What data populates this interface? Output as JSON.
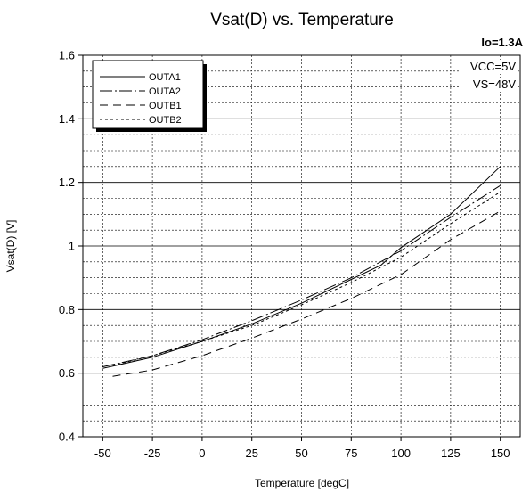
{
  "chart_data": {
    "type": "line",
    "title": "Vsat(D) vs. Temperature",
    "corner_label": "Io=1.3A",
    "conditions": [
      "VCC=5V",
      "VS=48V"
    ],
    "xlabel": "Temperature [degC]",
    "ylabel": "Vsat(D) [V]",
    "xlim": [
      -60,
      160
    ],
    "ylim": [
      0.4,
      1.6
    ],
    "xticks": [
      -50,
      -25,
      0,
      25,
      50,
      75,
      100,
      125,
      150
    ],
    "yticks": [
      0.4,
      0.6,
      0.8,
      1,
      1.2,
      1.4,
      1.6
    ],
    "ytick_labels": [
      "0.4",
      "0.6",
      "0.8",
      "1",
      "1.2",
      "1.4",
      "1.6"
    ],
    "grid": true,
    "legend_position": "top-left",
    "series": [
      {
        "name": "OUTA1",
        "dash": "solid",
        "x": [
          -50,
          -25,
          0,
          25,
          50,
          75,
          90,
          100,
          125,
          150
        ],
        "y": [
          0.615,
          0.65,
          0.7,
          0.755,
          0.82,
          0.895,
          0.94,
          0.995,
          1.1,
          1.25
        ]
      },
      {
        "name": "OUTA2",
        "dash": "longdash",
        "x": [
          -50,
          -25,
          0,
          25,
          50,
          75,
          100,
          125,
          150
        ],
        "y": [
          0.62,
          0.655,
          0.705,
          0.765,
          0.83,
          0.9,
          0.985,
          1.09,
          1.19
        ]
      },
      {
        "name": "OUTB1",
        "dash": "dash",
        "x": [
          -45,
          -25,
          0,
          25,
          50,
          75,
          100,
          125,
          150
        ],
        "y": [
          0.59,
          0.61,
          0.655,
          0.71,
          0.77,
          0.835,
          0.91,
          1.02,
          1.11
        ]
      },
      {
        "name": "OUTB2",
        "dash": "dot",
        "x": [
          -45,
          -25,
          0,
          25,
          50,
          75,
          100,
          125,
          150
        ],
        "y": [
          0.625,
          0.655,
          0.7,
          0.75,
          0.815,
          0.885,
          0.965,
          1.07,
          1.17
        ]
      }
    ]
  }
}
